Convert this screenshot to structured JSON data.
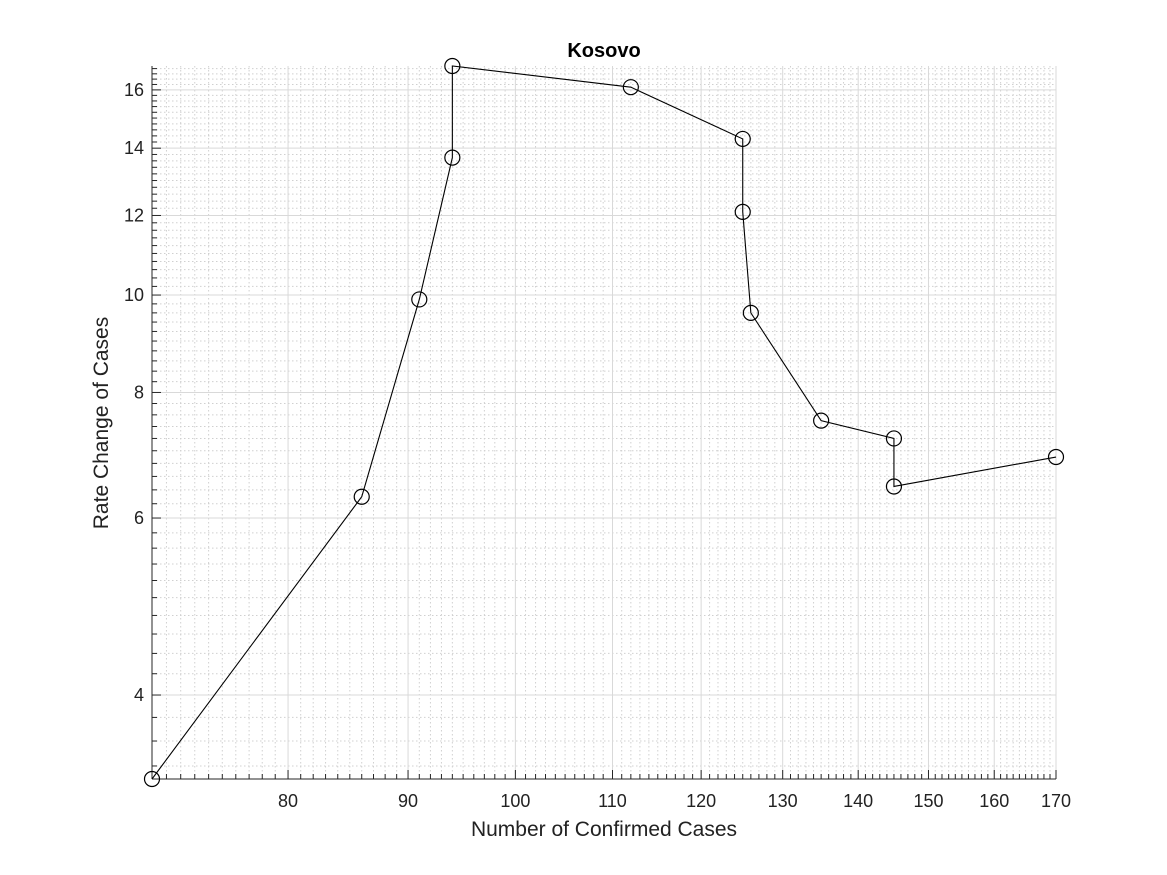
{
  "chart_data": {
    "type": "line",
    "title": "Kosovo",
    "xlabel": "Number of Confirmed Cases",
    "ylabel": "Rate Change of Cases",
    "xscale": "log",
    "yscale": "log",
    "xlim": [
      70,
      170
    ],
    "ylim": [
      3.3,
      16.9
    ],
    "xticks": [
      80,
      90,
      100,
      110,
      120,
      130,
      140,
      150,
      160,
      170
    ],
    "yticks": [
      4,
      6,
      8,
      10,
      12,
      14,
      16
    ],
    "grid": true,
    "marker": "circle",
    "series": [
      {
        "x": [
          70,
          86,
          91,
          94,
          94,
          112,
          125,
          125,
          126,
          135,
          145,
          145,
          170
        ],
        "y": [
          3.3,
          6.3,
          9.9,
          13.7,
          16.9,
          16.1,
          14.3,
          12.1,
          9.6,
          7.5,
          7.2,
          6.45,
          6.9
        ]
      }
    ],
    "colors": {
      "line": "#000000",
      "grid": "#d9d9d9",
      "axis": "#262626"
    }
  }
}
